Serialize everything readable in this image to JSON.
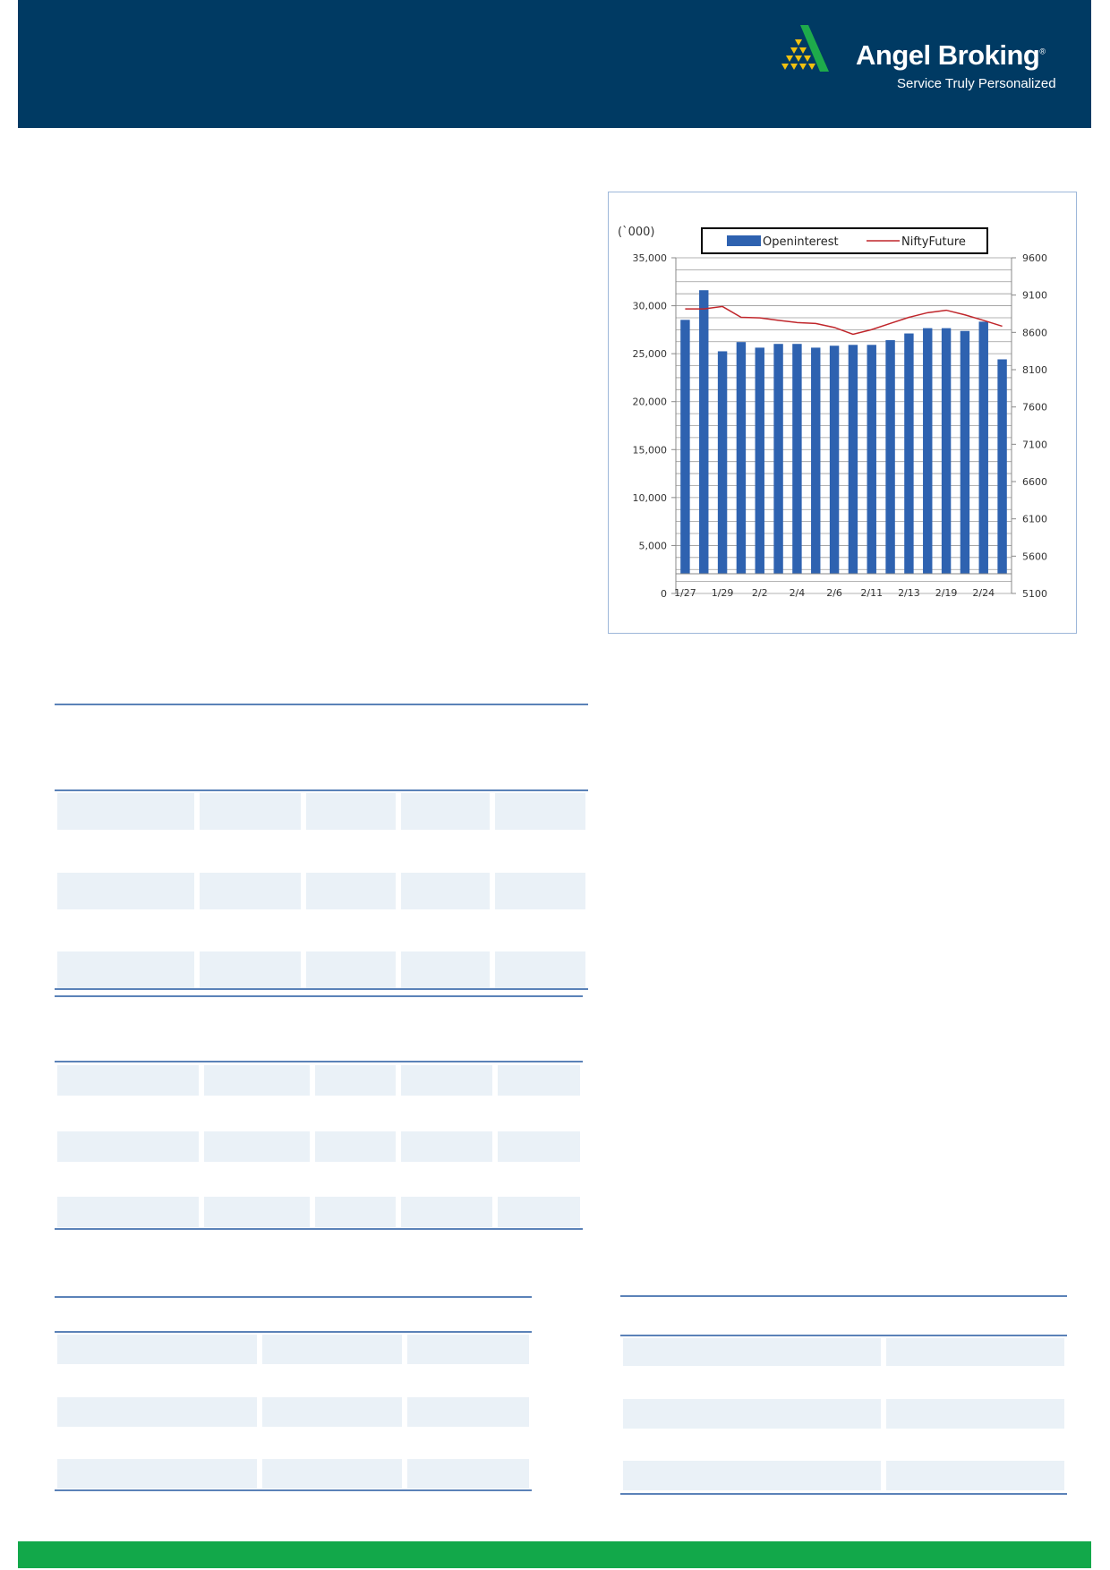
{
  "header": {
    "brand": "Angel Broking",
    "tagline": "Service Truly Personalized",
    "registered_mark": "®",
    "bg_color": "#003a63"
  },
  "footer": {
    "color": "#12a84a"
  },
  "chart_data": {
    "type": "bar+line",
    "unit_label": "(`000)",
    "categories": [
      "1/27",
      "",
      "1/29",
      "",
      "2/2",
      "",
      "2/4",
      "",
      "2/6",
      "",
      "2/11",
      "",
      "2/13",
      "",
      "2/19",
      "",
      "2/24",
      ""
    ],
    "series": [
      {
        "name": "Openinterest",
        "type": "bar",
        "axis": "left",
        "color": "#2e62b0",
        "values": [
          28530,
          31620,
          25250,
          26210,
          25630,
          26020,
          26020,
          25630,
          25830,
          25920,
          25920,
          26410,
          27110,
          27660,
          27660,
          27370,
          28340,
          24410
        ]
      },
      {
        "name": "NiftyFuture",
        "type": "line",
        "axis": "right",
        "color": "#c0262b",
        "values": [
          8914,
          8914,
          8947,
          8802,
          8794,
          8761,
          8732,
          8720,
          8666,
          8575,
          8637,
          8720,
          8802,
          8864,
          8897,
          8835,
          8761,
          8683
        ]
      }
    ],
    "left_axis": {
      "range": [
        0,
        35000
      ],
      "ticks": [
        "0",
        "5,000",
        "10,000",
        "15,000",
        "20,000",
        "25,000",
        "30,000",
        "35,000"
      ]
    },
    "right_axis": {
      "range": [
        5100,
        9600
      ],
      "ticks": [
        "5100",
        "5600",
        "6100",
        "6600",
        "7100",
        "7600",
        "8100",
        "8600",
        "9100",
        "9600"
      ]
    },
    "grid": true,
    "legend": "top"
  }
}
